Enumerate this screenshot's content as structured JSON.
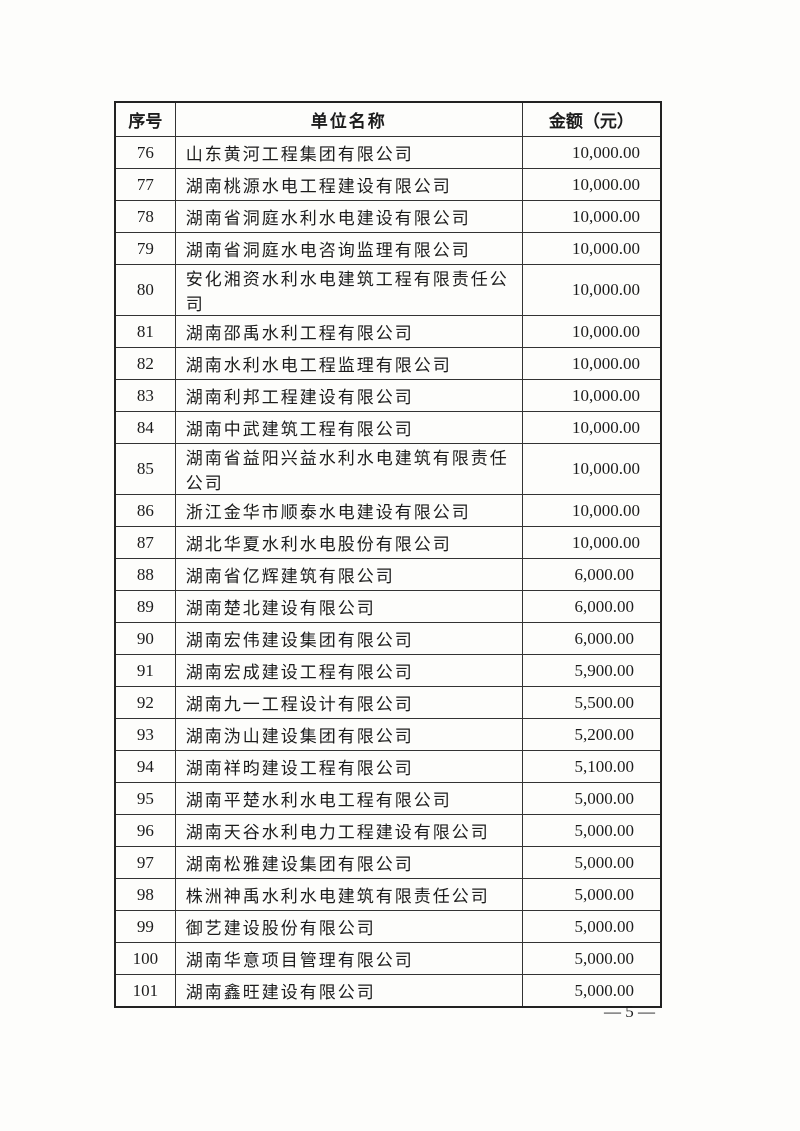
{
  "table": {
    "headers": [
      "序号",
      "单位名称",
      "金额（元）"
    ],
    "rows": [
      {
        "no": "76",
        "name": "山东黄河工程集团有限公司",
        "amount": "10,000.00"
      },
      {
        "no": "77",
        "name": "湖南桃源水电工程建设有限公司",
        "amount": "10,000.00"
      },
      {
        "no": "78",
        "name": "湖南省洞庭水利水电建设有限公司",
        "amount": "10,000.00"
      },
      {
        "no": "79",
        "name": "湖南省洞庭水电咨询监理有限公司",
        "amount": "10,000.00"
      },
      {
        "no": "80",
        "name": "安化湘资水利水电建筑工程有限责任公司",
        "amount": "10,000.00"
      },
      {
        "no": "81",
        "name": "湖南邵禹水利工程有限公司",
        "amount": "10,000.00"
      },
      {
        "no": "82",
        "name": "湖南水利水电工程监理有限公司",
        "amount": "10,000.00"
      },
      {
        "no": "83",
        "name": "湖南利邦工程建设有限公司",
        "amount": "10,000.00"
      },
      {
        "no": "84",
        "name": "湖南中武建筑工程有限公司",
        "amount": "10,000.00"
      },
      {
        "no": "85",
        "name": "湖南省益阳兴益水利水电建筑有限责任公司",
        "amount": "10,000.00"
      },
      {
        "no": "86",
        "name": "浙江金华市顺泰水电建设有限公司",
        "amount": "10,000.00"
      },
      {
        "no": "87",
        "name": "湖北华夏水利水电股份有限公司",
        "amount": "10,000.00"
      },
      {
        "no": "88",
        "name": "湖南省亿辉建筑有限公司",
        "amount": "6,000.00"
      },
      {
        "no": "89",
        "name": "湖南楚北建设有限公司",
        "amount": "6,000.00"
      },
      {
        "no": "90",
        "name": "湖南宏伟建设集团有限公司",
        "amount": "6,000.00"
      },
      {
        "no": "91",
        "name": "湖南宏成建设工程有限公司",
        "amount": "5,900.00"
      },
      {
        "no": "92",
        "name": "湖南九一工程设计有限公司",
        "amount": "5,500.00"
      },
      {
        "no": "93",
        "name": "湖南沩山建设集团有限公司",
        "amount": "5,200.00"
      },
      {
        "no": "94",
        "name": "湖南祥昀建设工程有限公司",
        "amount": "5,100.00"
      },
      {
        "no": "95",
        "name": "湖南平楚水利水电工程有限公司",
        "amount": "5,000.00"
      },
      {
        "no": "96",
        "name": "湖南天谷水利电力工程建设有限公司",
        "amount": "5,000.00"
      },
      {
        "no": "97",
        "name": "湖南松雅建设集团有限公司",
        "amount": "5,000.00"
      },
      {
        "no": "98",
        "name": "株洲神禹水利水电建筑有限责任公司",
        "amount": "5,000.00"
      },
      {
        "no": "99",
        "name": "御艺建设股份有限公司",
        "amount": "5,000.00"
      },
      {
        "no": "100",
        "name": "湖南华意项目管理有限公司",
        "amount": "5,000.00"
      },
      {
        "no": "101",
        "name": "湖南鑫旺建设有限公司",
        "amount": "5,000.00"
      }
    ]
  },
  "footer": {
    "page_number": "— 5 —"
  }
}
